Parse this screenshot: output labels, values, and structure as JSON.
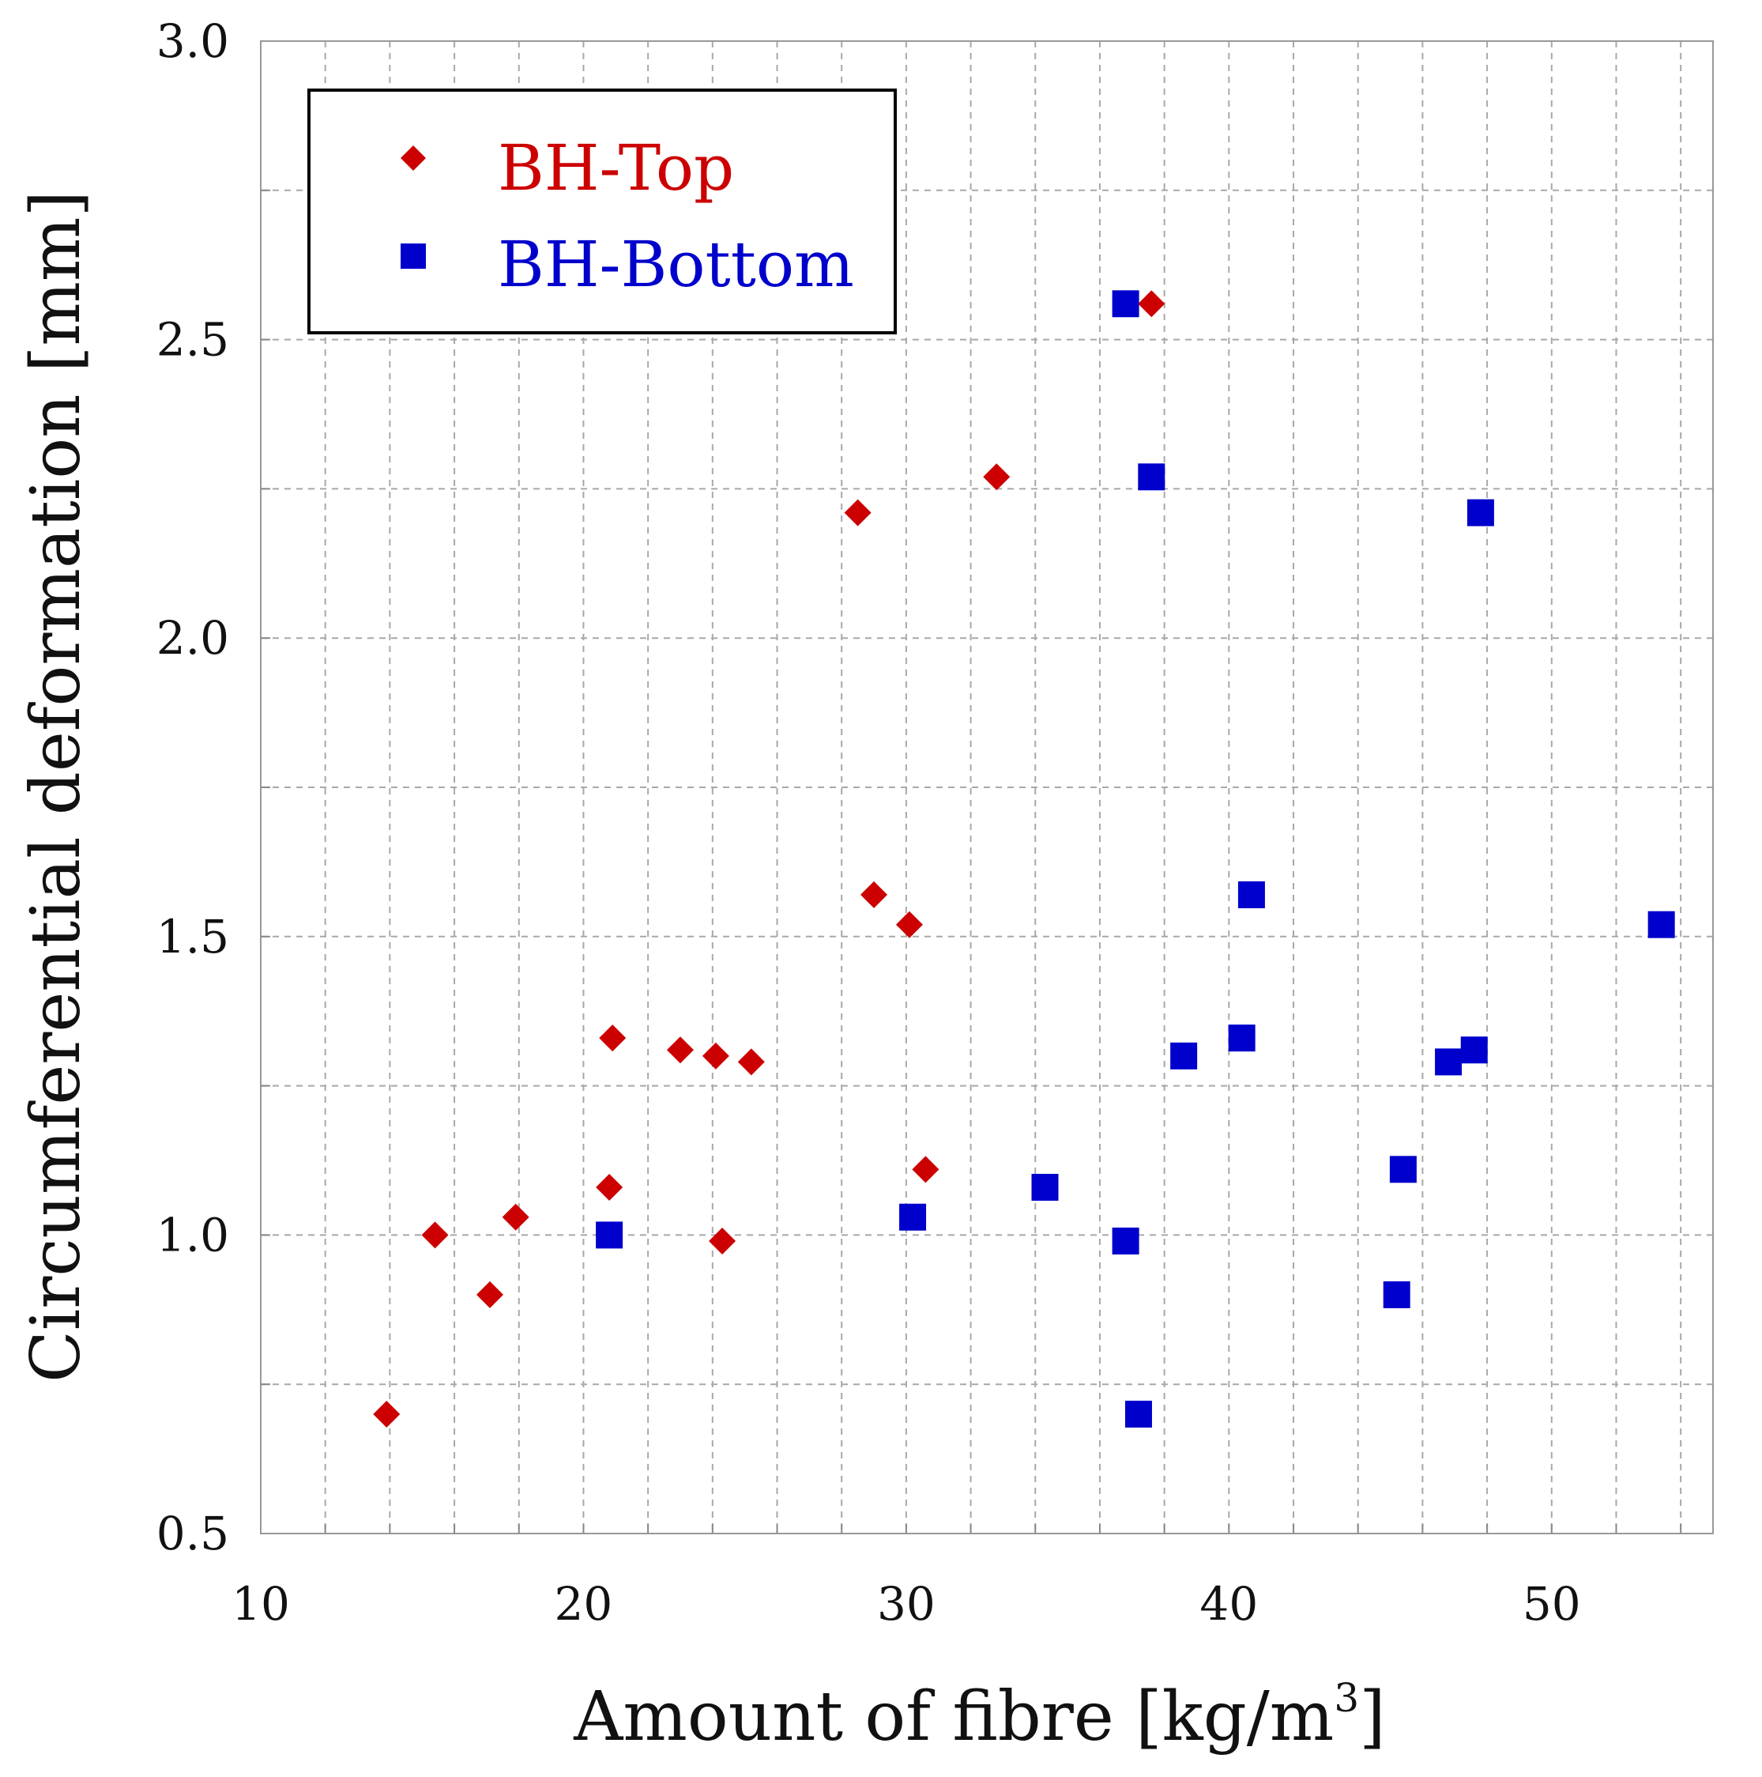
{
  "chart_data": {
    "type": "scatter",
    "xlabel": "Amount of fibre [kg/m",
    "xlabel_superscript": "3",
    "xlabel_suffix": "]",
    "ylabel": "Circumferential deformation [mm]",
    "xlim": [
      10,
      55
    ],
    "ylim": [
      0.5,
      3.0
    ],
    "xticks": [
      10,
      20,
      30,
      40,
      50
    ],
    "xtick_labels": [
      "10",
      "20",
      "30",
      "40",
      "50"
    ],
    "yticks": [
      0.5,
      1.0,
      1.5,
      2.0,
      2.5,
      3.0
    ],
    "ytick_labels": [
      "0.5",
      "1.0",
      "1.5",
      "2.0",
      "2.5",
      "3.0"
    ],
    "x_minor_step": 2,
    "y_minor_step": 0.25,
    "grid": true,
    "legend_position": "top-left",
    "series": [
      {
        "name": "BH-Top",
        "marker": "diamond",
        "color": "#cc0000",
        "points": [
          {
            "x": 13.9,
            "y": 0.7
          },
          {
            "x": 15.4,
            "y": 1.0
          },
          {
            "x": 17.1,
            "y": 0.9
          },
          {
            "x": 17.9,
            "y": 1.03
          },
          {
            "x": 20.8,
            "y": 1.08
          },
          {
            "x": 20.9,
            "y": 1.33
          },
          {
            "x": 23.0,
            "y": 1.31
          },
          {
            "x": 24.1,
            "y": 1.3
          },
          {
            "x": 24.3,
            "y": 0.99
          },
          {
            "x": 25.2,
            "y": 1.29
          },
          {
            "x": 28.5,
            "y": 2.21
          },
          {
            "x": 29.0,
            "y": 1.57
          },
          {
            "x": 30.1,
            "y": 1.52
          },
          {
            "x": 30.6,
            "y": 1.11
          },
          {
            "x": 32.8,
            "y": 2.27
          },
          {
            "x": 37.6,
            "y": 2.56
          }
        ]
      },
      {
        "name": "BH-Bottom",
        "marker": "square",
        "color": "#0000cc",
        "points": [
          {
            "x": 20.8,
            "y": 1.0
          },
          {
            "x": 30.2,
            "y": 1.03
          },
          {
            "x": 34.3,
            "y": 1.08
          },
          {
            "x": 36.8,
            "y": 0.99
          },
          {
            "x": 36.8,
            "y": 2.56
          },
          {
            "x": 37.2,
            "y": 0.7
          },
          {
            "x": 37.6,
            "y": 2.27
          },
          {
            "x": 38.6,
            "y": 1.3
          },
          {
            "x": 40.4,
            "y": 1.33
          },
          {
            "x": 40.7,
            "y": 1.57
          },
          {
            "x": 45.2,
            "y": 0.9
          },
          {
            "x": 45.4,
            "y": 1.11
          },
          {
            "x": 46.8,
            "y": 1.29
          },
          {
            "x": 47.6,
            "y": 1.31
          },
          {
            "x": 47.8,
            "y": 2.21
          },
          {
            "x": 53.4,
            "y": 1.52
          }
        ]
      }
    ]
  }
}
